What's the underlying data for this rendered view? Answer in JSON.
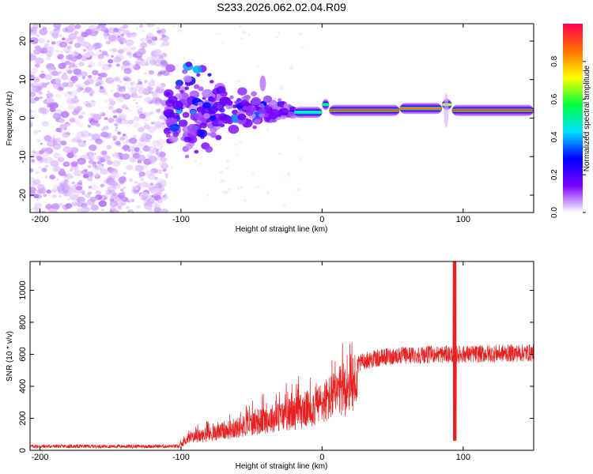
{
  "chart_data": [
    {
      "type": "heatmap",
      "title": "S233.2026.062.02.04.R09",
      "xlabel": "Height of straight line (km)",
      "ylabel": "Frequency (Hz)",
      "xlim": [
        -207,
        150
      ],
      "ylim": [
        -24.5,
        24.5
      ],
      "xticks": [
        -200,
        -100,
        0,
        100
      ],
      "xtick_labels": [
        "-200",
        "-100",
        "0",
        "100"
      ],
      "yticks": [
        -20,
        -10,
        0,
        10,
        20
      ],
      "ytick_labels": [
        "-20",
        "-10",
        "0",
        "10",
        "20"
      ],
      "colorbar": {
        "label": "Normalized spectral amplitude",
        "range": [
          0,
          1
        ],
        "ticks": [
          0.0,
          0.2,
          0.4,
          0.6,
          0.8
        ],
        "tick_labels": [
          "0.0",
          "0.2",
          "0.4",
          "0.6",
          "0.8"
        ],
        "colormap": [
          "#ffffff",
          "#7a00ff",
          "#0000ff",
          "#00e0ff",
          "#00ff40",
          "#ffff00",
          "#ff7000",
          "#ff0050"
        ]
      },
      "noise_region_km": [
        -207,
        -110
      ],
      "transition_region_km": [
        -110,
        -20
      ],
      "carrier_segments": [
        {
          "x0": -20,
          "x1": 0,
          "freq": 1.5,
          "amp": 0.45
        },
        {
          "x0": 0,
          "x1": 5,
          "freq": 3.5,
          "amp": 0.5
        },
        {
          "x0": 5,
          "x1": 55,
          "freq": 2.0,
          "amp": 0.9
        },
        {
          "x0": 55,
          "x1": 85,
          "freq": 2.5,
          "amp": 0.85
        },
        {
          "x0": 85,
          "x1": 92,
          "freq": 3.5,
          "amp": 0.7
        },
        {
          "x0": 92,
          "x1": 150,
          "freq": 2.0,
          "amp": 0.9
        }
      ]
    },
    {
      "type": "line",
      "title": "",
      "xlabel": "Height of straight line (km)",
      "ylabel": "SNR (10 * v/v)",
      "xlim": [
        -207,
        150
      ],
      "ylim": [
        0,
        1180
      ],
      "xticks": [
        -200,
        -100,
        0,
        100
      ],
      "xtick_labels": [
        "-200",
        "-100",
        "0",
        "100"
      ],
      "yticks": [
        0,
        200,
        400,
        600,
        800,
        1000
      ],
      "ytick_labels": [
        "0",
        "200",
        "400",
        "600",
        "800",
        "1000"
      ],
      "color": "#e82020",
      "envelope": [
        {
          "x": -207,
          "y": 25
        },
        {
          "x": -102,
          "y": 25
        },
        {
          "x": -95,
          "y": 90
        },
        {
          "x": -80,
          "y": 120
        },
        {
          "x": -60,
          "y": 170
        },
        {
          "x": -40,
          "y": 230
        },
        {
          "x": -20,
          "y": 280
        },
        {
          "x": -5,
          "y": 330
        },
        {
          "x": 0,
          "y": 360
        },
        {
          "x": 10,
          "y": 420
        },
        {
          "x": 20,
          "y": 500
        },
        {
          "x": 30,
          "y": 560
        },
        {
          "x": 50,
          "y": 590
        },
        {
          "x": 80,
          "y": 600
        },
        {
          "x": 100,
          "y": 600
        },
        {
          "x": 150,
          "y": 610
        }
      ],
      "spike": {
        "x": 94,
        "min": 60,
        "max": 1180
      }
    }
  ]
}
